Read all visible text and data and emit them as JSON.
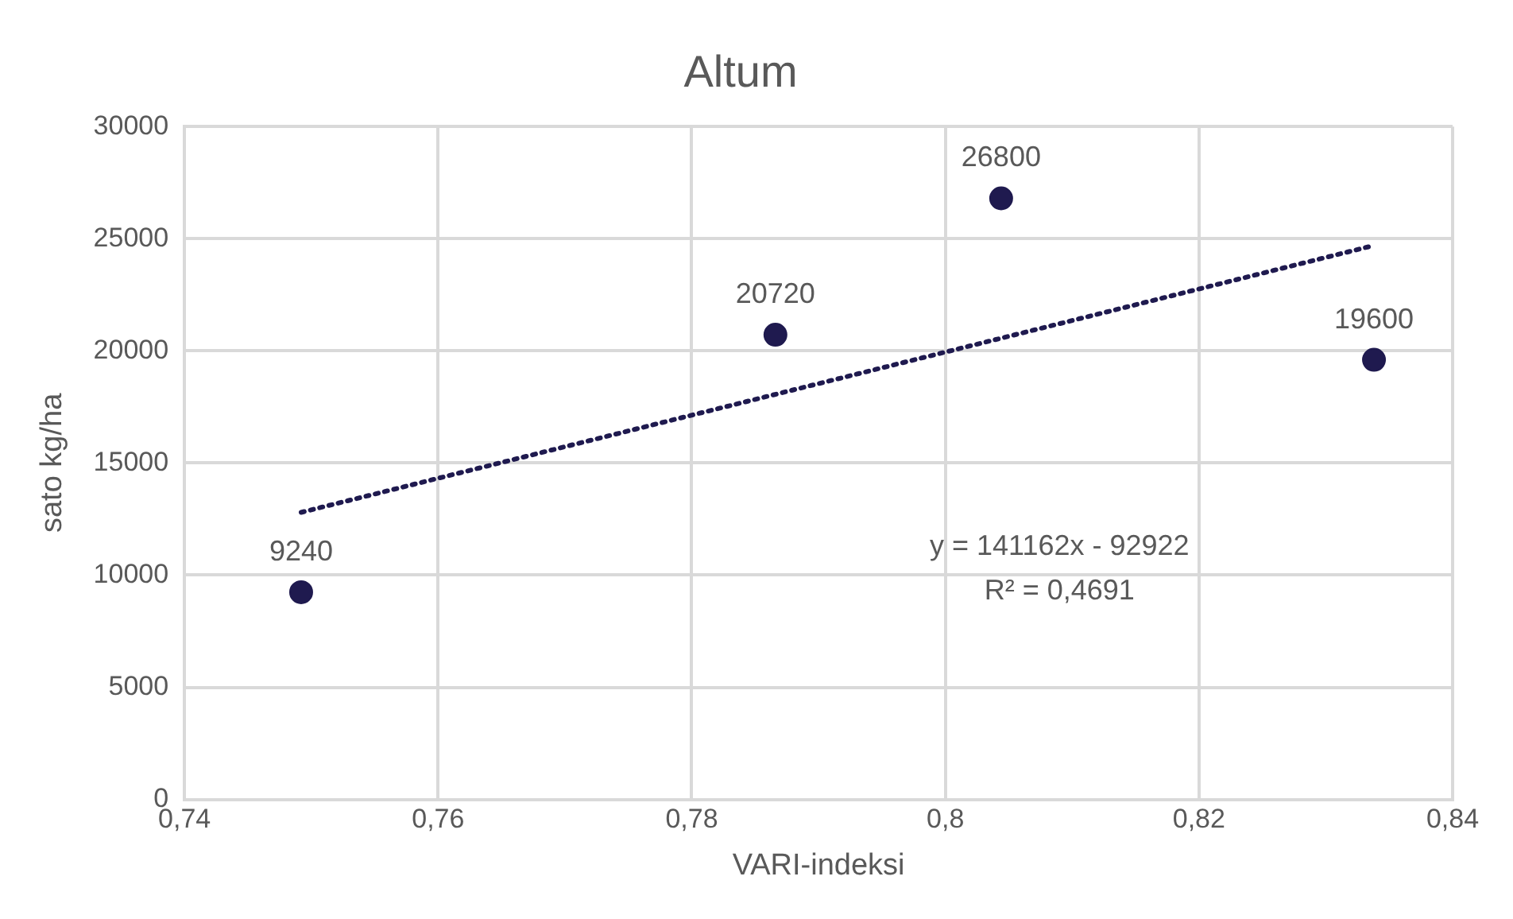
{
  "chart_data": {
    "type": "scatter",
    "title": "Altum",
    "xlabel": "VARI-indeksi",
    "ylabel": "sato kg/ha",
    "xlim": [
      0.74,
      0.84
    ],
    "xticks": [
      {
        "value": 0.74,
        "label": "0,74"
      },
      {
        "value": 0.76,
        "label": "0,76"
      },
      {
        "value": 0.78,
        "label": "0,78"
      },
      {
        "value": 0.8,
        "label": "0,8"
      },
      {
        "value": 0.82,
        "label": "0,82"
      },
      {
        "value": 0.84,
        "label": "0,84"
      }
    ],
    "ylim": [
      0,
      30000
    ],
    "yticks": [
      0,
      5000,
      10000,
      15000,
      20000,
      25000,
      30000
    ],
    "grid": true,
    "legend": false,
    "marker": "circle",
    "series": [
      {
        "color": "#1f1a4f",
        "x": [
          0.7492,
          0.7866,
          0.8044,
          0.8338
        ],
        "values": [
          9240,
          20720,
          26800,
          19600
        ],
        "value_labels": [
          "9240",
          "20720",
          "26800",
          "19600"
        ]
      },
      {
        "type": "line",
        "color": "#1f1a4f",
        "line_style": "dotted",
        "marker": "none",
        "x": [
          0.7492,
          0.8338
        ],
        "values": [
          12800,
          24700
        ]
      }
    ],
    "annotations": [
      "y = 141162x - 92922",
      "R² = 0,4691"
    ]
  }
}
